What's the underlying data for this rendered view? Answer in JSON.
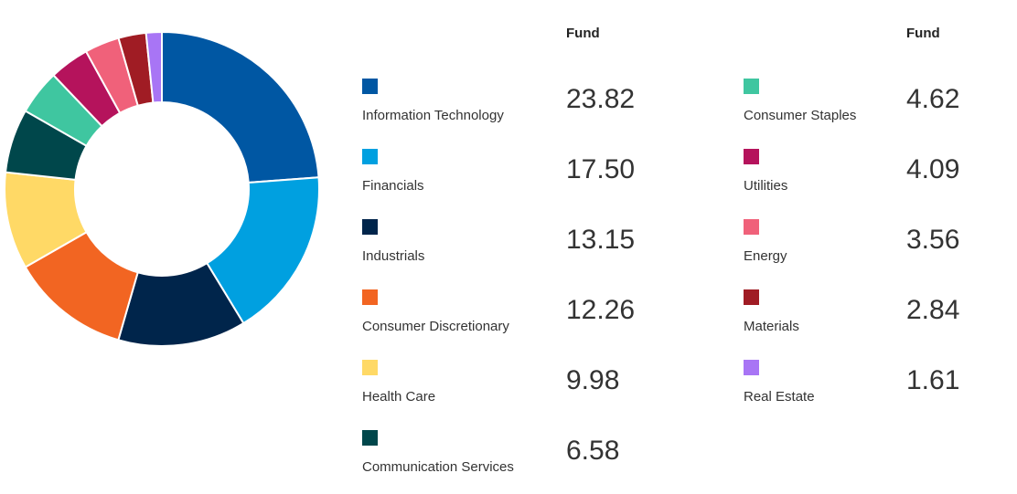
{
  "chart_data": {
    "type": "pie",
    "donut": true,
    "legend_position": "right",
    "value_column_header": "Fund",
    "slices": [
      {
        "label": "Information Technology",
        "value": 23.82,
        "display": "23.82",
        "color": "#0057a3"
      },
      {
        "label": "Financials",
        "value": 17.5,
        "display": "17.50",
        "color": "#00a0e0"
      },
      {
        "label": "Industrials",
        "value": 13.15,
        "display": "13.15",
        "color": "#00254b"
      },
      {
        "label": "Consumer Discretionary",
        "value": 12.26,
        "display": "12.26",
        "color": "#f26522"
      },
      {
        "label": "Health Care",
        "value": 9.98,
        "display": "9.98",
        "color": "#ffd966"
      },
      {
        "label": "Communication Services",
        "value": 6.58,
        "display": "6.58",
        "color": "#00474b"
      },
      {
        "label": "Consumer Staples",
        "value": 4.62,
        "display": "4.62",
        "color": "#3fc6a0"
      },
      {
        "label": "Utilities",
        "value": 4.09,
        "display": "4.09",
        "color": "#b5135c"
      },
      {
        "label": "Energy",
        "value": 3.56,
        "display": "3.56",
        "color": "#f0617a"
      },
      {
        "label": "Materials",
        "value": 2.84,
        "display": "2.84",
        "color": "#a01c24"
      },
      {
        "label": "Real Estate",
        "value": 1.61,
        "display": "1.61",
        "color": "#a875f5"
      }
    ]
  }
}
